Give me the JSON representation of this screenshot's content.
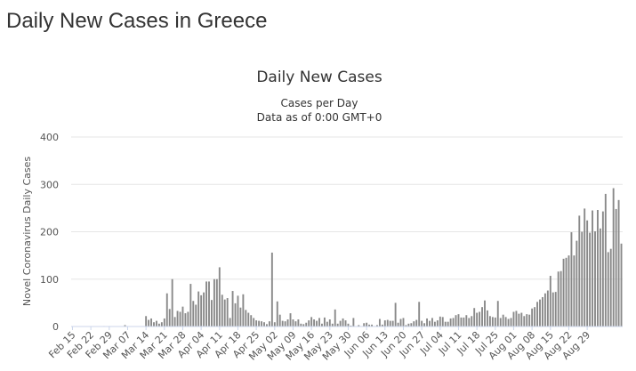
{
  "page": {
    "heading": "Daily New Cases in Greece"
  },
  "chart_data": {
    "type": "bar",
    "title": "Daily New Cases",
    "subtitle_1": "Cases per Day",
    "subtitle_2": "Data as of 0:00 GMT+0",
    "ylabel": "Novel Coronavirus Daily Cases",
    "ylim": [
      0,
      400
    ],
    "yticks": [
      0,
      100,
      200,
      300,
      400
    ],
    "start_date": "2020-02-15",
    "xtick_labels": [
      "Feb 15",
      "Feb 22",
      "Feb 29",
      "Mar 07",
      "Mar 14",
      "Mar 21",
      "Mar 28",
      "Apr 04",
      "Apr 11",
      "Apr 18",
      "Apr 25",
      "May 02",
      "May 09",
      "May 16",
      "May 23",
      "May 30",
      "Jun 06",
      "Jun 13",
      "Jun 20",
      "Jun 27",
      "Jul 04",
      "Jul 11",
      "Jul 18",
      "Jul 25",
      "Aug 01",
      "Aug 08",
      "Aug 15",
      "Aug 22",
      "Aug 29"
    ],
    "bar_color": "#898989",
    "grid": true,
    "values": [
      0,
      0,
      0,
      0,
      0,
      0,
      0,
      0,
      0,
      0,
      0,
      0,
      1,
      0,
      1,
      0,
      0,
      0,
      0,
      0,
      3,
      0,
      0,
      0,
      0,
      0,
      0,
      0,
      22,
      14,
      17,
      9,
      12,
      6,
      9,
      17,
      70,
      37,
      100,
      20,
      33,
      31,
      42,
      28,
      31,
      90,
      54,
      46,
      74,
      66,
      72,
      95,
      95,
      56,
      100,
      100,
      125,
      67,
      57,
      60,
      18,
      75,
      49,
      65,
      40,
      68,
      35,
      29,
      24,
      18,
      13,
      12,
      11,
      9,
      5,
      11,
      156,
      9,
      53,
      25,
      12,
      11,
      15,
      28,
      15,
      11,
      15,
      6,
      5,
      8,
      13,
      20,
      15,
      12,
      18,
      6,
      19,
      10,
      15,
      6,
      36,
      6,
      12,
      17,
      13,
      6,
      2,
      18,
      0,
      3,
      0,
      7,
      8,
      4,
      4,
      1,
      3,
      16,
      4,
      13,
      14,
      12,
      12,
      50,
      8,
      16,
      18,
      3,
      6,
      7,
      11,
      14,
      52,
      12,
      7,
      17,
      12,
      18,
      10,
      13,
      21,
      20,
      10,
      10,
      17,
      18,
      24,
      26,
      19,
      19,
      24,
      18,
      22,
      39,
      29,
      31,
      41,
      55,
      34,
      22,
      20,
      19,
      54,
      18,
      25,
      20,
      16,
      18,
      31,
      33,
      27,
      29,
      22,
      26,
      25,
      38,
      41,
      52,
      57,
      62,
      70,
      76,
      107,
      72,
      73,
      116,
      117,
      143,
      145,
      150,
      199,
      150,
      181,
      234,
      200,
      249,
      224,
      198,
      245,
      201,
      246,
      207,
      243,
      280,
      157,
      164,
      292,
      248,
      267,
      175
    ]
  }
}
